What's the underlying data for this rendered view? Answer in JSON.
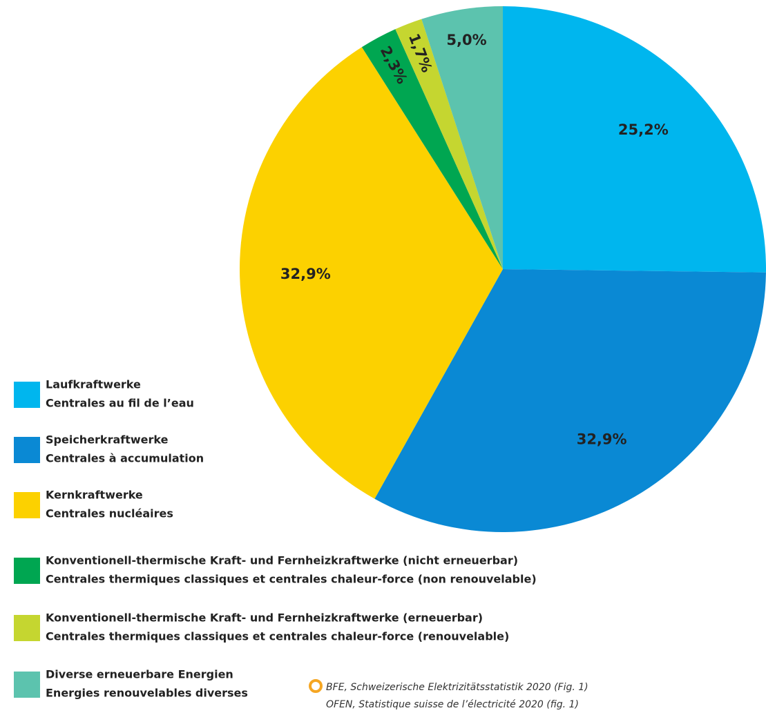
{
  "chart_data": {
    "type": "pie",
    "categories": [
      "Laufkraftwerke",
      "Speicherkraftwerke",
      "Kernkraftwerke",
      "Konventionell-thermische Kraft- und Fernheizkraftwerke (nicht erneuerbar)",
      "Konventionell-thermische Kraft- und Fernheizkraftwerke (erneuerbar)",
      "Diverse erneuerbare Energien"
    ],
    "categories_fr": [
      "Centrales au fil de l’eau",
      "Centrales à accumulation",
      "Centrales nucléaires",
      "Centrales thermiques classiques et centrales chaleur-force (non renouvelable)",
      "Centrales thermiques classiques et centrales chaleur-force (renouvelable)",
      "Energies renouvelables diverses"
    ],
    "values": [
      25.2,
      32.9,
      32.9,
      2.3,
      1.7,
      5.0
    ],
    "value_labels": [
      "25,2%",
      "32,9%",
      "32,9%",
      "2,3%",
      "1,7%",
      "5,0%"
    ],
    "colors": [
      "#00b6ee",
      "#0a89d4",
      "#fcd100",
      "#00a651",
      "#c5d630",
      "#5cc3ae"
    ],
    "source": [
      "BFE, Schweizerische Elektrizitätsstatistik 2020 (Fig. 1)",
      "OFEN, Statistique suisse de l’électricité 2020 (fig. 1)"
    ]
  }
}
